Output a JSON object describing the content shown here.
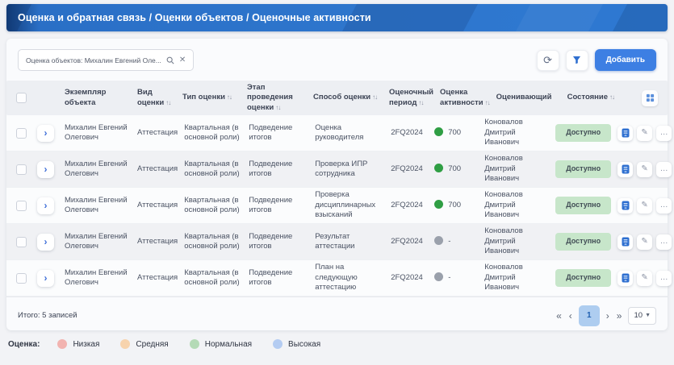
{
  "title": "Оценка и обратная связь / Оценки объектов / Оценочные активности",
  "toolbar": {
    "search_chip": "Оценка объектов: Михалин Евгений Оле...",
    "add_label": "Добавить"
  },
  "icons": {
    "search": "magnifier",
    "clear": "✕",
    "refresh": "⟳",
    "filter": "funnel",
    "expand": "›",
    "edit": "✎",
    "more": "…",
    "sort": "↑↓",
    "column_settings": "grid"
  },
  "table": {
    "columns": [
      {
        "key": "object",
        "label": "Экземпляр объекта",
        "sortable": false
      },
      {
        "key": "kind",
        "label": "Вид оценки",
        "sortable": true
      },
      {
        "key": "type",
        "label": "Тип оценки",
        "sortable": true
      },
      {
        "key": "stage",
        "label": "Этап проведения оценки",
        "sortable": true
      },
      {
        "key": "method",
        "label": "Способ оценки",
        "sortable": true
      },
      {
        "key": "period",
        "label": "Оценочный период",
        "sortable": true
      },
      {
        "key": "activity",
        "label": "Оценка активности",
        "sortable": true
      },
      {
        "key": "assessor",
        "label": "Оценивающий",
        "sortable": false
      },
      {
        "key": "state",
        "label": "Состояние",
        "sortable": true
      }
    ],
    "rows": [
      {
        "object": "Михалин Евгений Олегович",
        "kind": "Аттестация",
        "type": "Квартальная (в основной роли)",
        "stage": "Подведение итогов",
        "method": "Оценка руководителя",
        "period": "2FQ2024",
        "activity_value": "700",
        "activity_color": "green",
        "assessor": "Коновалов Дмитрий Иванович",
        "state": "Доступно"
      },
      {
        "object": "Михалин Евгений Олегович",
        "kind": "Аттестация",
        "type": "Квартальная (в основной роли)",
        "stage": "Подведение итогов",
        "method": "Проверка ИПР сотрудника",
        "period": "2FQ2024",
        "activity_value": "700",
        "activity_color": "green",
        "assessor": "Коновалов Дмитрий Иванович",
        "state": "Доступно"
      },
      {
        "object": "Михалин Евгений Олегович",
        "kind": "Аттестация",
        "type": "Квартальная (в основной роли)",
        "stage": "Подведение итогов",
        "method": "Проверка дисциплинарных взысканий",
        "period": "2FQ2024",
        "activity_value": "700",
        "activity_color": "green",
        "assessor": "Коновалов Дмитрий Иванович",
        "state": "Доступно"
      },
      {
        "object": "Михалин Евгений Олегович",
        "kind": "Аттестация",
        "type": "Квартальная (в основной роли)",
        "stage": "Подведение итогов",
        "method": "Результат аттестации",
        "period": "2FQ2024",
        "activity_value": "-",
        "activity_color": "gray",
        "assessor": "Коновалов Дмитрий Иванович",
        "state": "Доступно"
      },
      {
        "object": "Михалин Евгений Олегович",
        "kind": "Аттестация",
        "type": "Квартальная (в основной роли)",
        "stage": "Подведение итогов",
        "method": "План на следующую аттестацию",
        "period": "2FQ2024",
        "activity_value": "-",
        "activity_color": "gray",
        "assessor": "Коновалов Дмитрий Иванович",
        "state": "Доступно"
      }
    ]
  },
  "footer": {
    "total": "Итого: 5 записей",
    "pagination": {
      "first": "«",
      "prev": "‹",
      "page": "1",
      "next": "›",
      "last": "»",
      "page_size": "10"
    }
  },
  "legend": {
    "label": "Оценка:",
    "items": [
      {
        "label": "Низкая",
        "color": "#f2b3b0"
      },
      {
        "label": "Средняя",
        "color": "#f7d3ad"
      },
      {
        "label": "Нормальная",
        "color": "#b4dab6"
      },
      {
        "label": "Высокая",
        "color": "#b4ccf2"
      }
    ]
  },
  "colors": {
    "dot_green": "#2f9e44",
    "dot_gray": "#9aa0ab",
    "accent_blue": "#2e6fd0",
    "badge_bg": "#c7e6ca"
  }
}
